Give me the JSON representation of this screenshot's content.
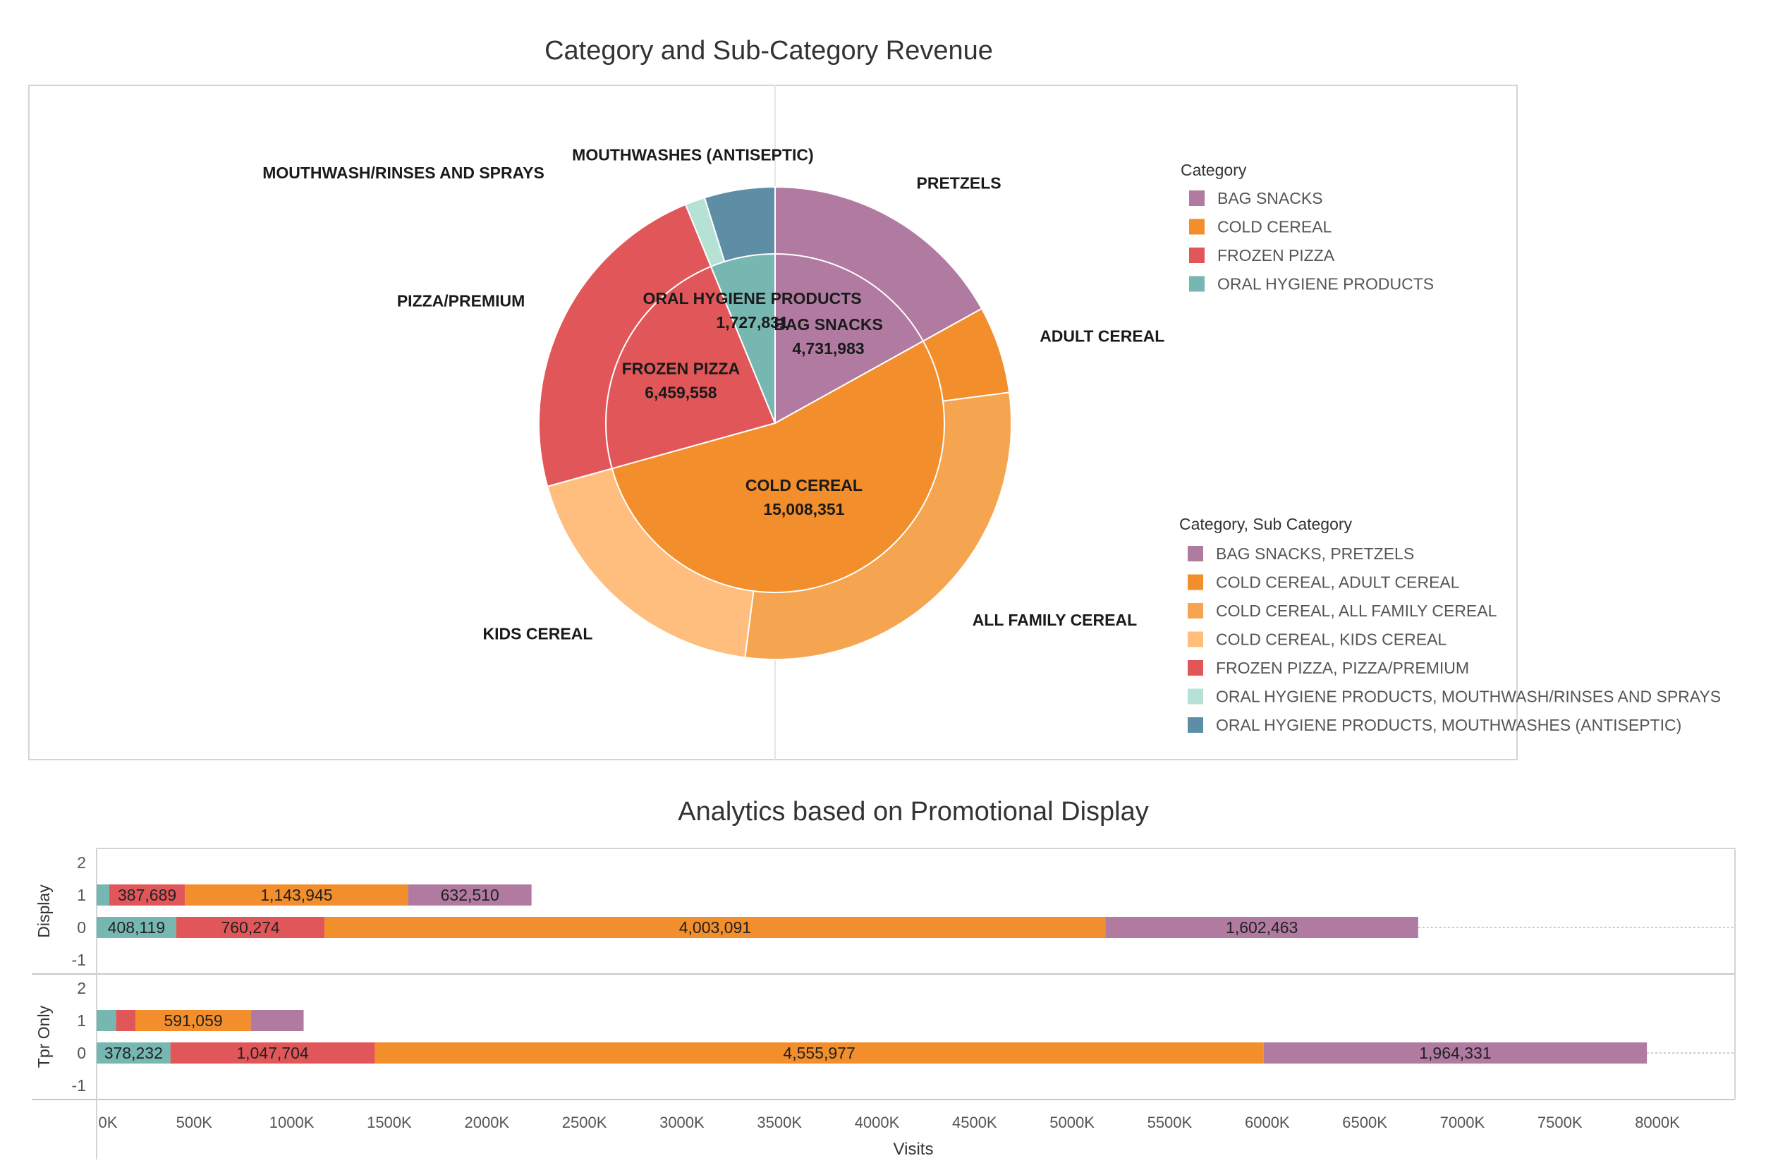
{
  "colors": {
    "bag_snacks": "#b07aa1",
    "cold_cereal": "#f28e2b",
    "frozen_pizza": "#e15759",
    "oral_hygiene": "#76b7b2",
    "adult_cereal": "#f28e2b",
    "all_family_cereal": "#f5a550",
    "kids_cereal": "#ffbe7d",
    "mouthwash_rinses": "#b6e1d5",
    "mouthwashes_antiseptic": "#5d8ea5"
  },
  "chart_data": [
    {
      "type": "pie",
      "title": "Category and Sub-Category Revenue",
      "inner_ring": [
        {
          "label": "BAG SNACKS",
          "value": 4731983,
          "value_label": "4,731,983",
          "color": "#b07aa1"
        },
        {
          "label": "COLD CEREAL",
          "value": 15008351,
          "value_label": "15,008,351",
          "color": "#f28e2b"
        },
        {
          "label": "FROZEN PIZZA",
          "value": 6459558,
          "value_label": "6,459,558",
          "color": "#e15759"
        },
        {
          "label": "ORAL HYGIENE PRODUCTS",
          "value": 1727831,
          "value_label": "1,727,831",
          "color": "#76b7b2"
        }
      ],
      "outer_ring": [
        {
          "label": "PRETZELS",
          "value": 4731983,
          "color": "#b07aa1"
        },
        {
          "label": "ADULT CEREAL",
          "value": 1670000,
          "color": "#f28e2b"
        },
        {
          "label": "ALL FAMILY CEREAL",
          "value": 8130000,
          "color": "#f5a550"
        },
        {
          "label": "KIDS CEREAL",
          "value": 5208351,
          "color": "#ffbe7d"
        },
        {
          "label": "PIZZA/PREMIUM",
          "value": 6459558,
          "color": "#e15759"
        },
        {
          "label": "MOUTHWASH/RINSES AND SPRAYS",
          "value": 380000,
          "color": "#b6e1d5"
        },
        {
          "label": "MOUTHWASHES (ANTISEPTIC)",
          "value": 1347831,
          "color": "#5d8ea5"
        }
      ],
      "legend_category": {
        "title": "Category",
        "items": [
          {
            "label": "BAG SNACKS",
            "color": "#b07aa1"
          },
          {
            "label": "COLD CEREAL",
            "color": "#f28e2b"
          },
          {
            "label": "FROZEN PIZZA",
            "color": "#e15759"
          },
          {
            "label": "ORAL HYGIENE PRODUCTS",
            "color": "#76b7b2"
          }
        ]
      },
      "legend_subcategory": {
        "title": "Category, Sub Category",
        "items": [
          {
            "label": "BAG SNACKS, PRETZELS",
            "color": "#b07aa1"
          },
          {
            "label": "COLD CEREAL, ADULT CEREAL",
            "color": "#f28e2b"
          },
          {
            "label": "COLD CEREAL, ALL FAMILY CEREAL",
            "color": "#f5a550"
          },
          {
            "label": "COLD CEREAL, KIDS CEREAL",
            "color": "#ffbe7d"
          },
          {
            "label": "FROZEN PIZZA, PIZZA/PREMIUM",
            "color": "#e15759"
          },
          {
            "label": "ORAL HYGIENE PRODUCTS, MOUTHWASH/RINSES AND SPRAYS",
            "color": "#b6e1d5"
          },
          {
            "label": "ORAL HYGIENE PRODUCTS, MOUTHWASHES (ANTISEPTIC)",
            "color": "#5d8ea5"
          }
        ]
      }
    },
    {
      "type": "bar",
      "orientation": "horizontal",
      "stacked": true,
      "title": "Analytics based on Promotional Display",
      "xlabel": "Visits",
      "xlim": [
        0,
        8400000
      ],
      "x_ticks": [
        0,
        500000,
        1000000,
        1500000,
        2000000,
        2500000,
        3000000,
        3500000,
        4000000,
        4500000,
        5000000,
        5500000,
        6000000,
        6500000,
        7000000,
        7500000,
        8000000
      ],
      "x_tick_labels": [
        "0K",
        "500K",
        "1000K",
        "1500K",
        "2000K",
        "2500K",
        "3000K",
        "3500K",
        "4000K",
        "4500K",
        "5000K",
        "5500K",
        "6000K",
        "6500K",
        "7000K",
        "7500K",
        "8000K"
      ],
      "y_ticks": [
        2,
        1,
        0,
        -1
      ],
      "y_tick_labels": [
        "2",
        "1",
        "0",
        "-1"
      ],
      "series_colors": [
        "#76b7b2",
        "#e15759",
        "#f28e2b",
        "#b07aa1"
      ],
      "panels": [
        {
          "name": "Display",
          "bars": [
            {
              "y": 1,
              "values": [
                65000,
                387689,
                1143945,
                632510
              ],
              "labels": [
                "",
                "387,689",
                "1,143,945",
                "632,510"
              ]
            },
            {
              "y": 0,
              "values": [
                408119,
                760274,
                4003091,
                1602463
              ],
              "labels": [
                "408,119",
                "760,274",
                "4,003,091",
                "1,602,463"
              ]
            }
          ]
        },
        {
          "name": "Tpr Only",
          "bars": [
            {
              "y": 1,
              "values": [
                100000,
                100000,
                591059,
                270000
              ],
              "labels": [
                "",
                "",
                "591,059",
                ""
              ]
            },
            {
              "y": 0,
              "values": [
                378232,
                1047704,
                4555977,
                1964331
              ],
              "labels": [
                "378,232",
                "1,047,704",
                "4,555,977",
                "1,964,331"
              ]
            }
          ]
        }
      ]
    }
  ]
}
